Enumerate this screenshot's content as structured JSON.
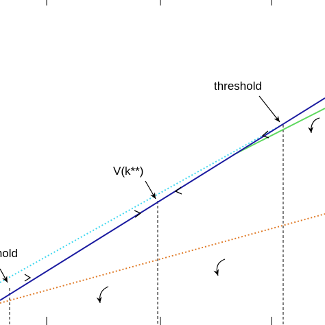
{
  "annotations": {
    "threshold_right": "threshold",
    "vk": "V(k**)",
    "threshold_left": "threshold"
  }
}
